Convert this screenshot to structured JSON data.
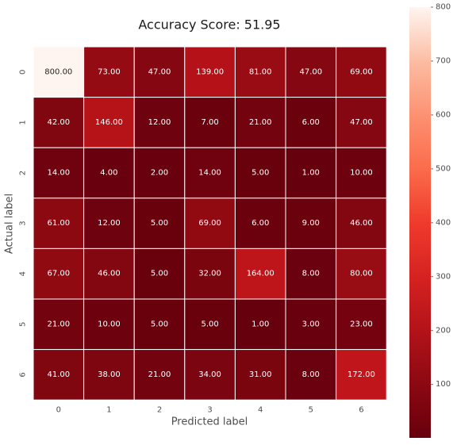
{
  "chart_data": {
    "type": "heatmap",
    "title": "Accuracy Score: 51.95",
    "xlabel": "Predicted label",
    "ylabel": "Actual label",
    "x_categories": [
      "0",
      "1",
      "2",
      "3",
      "4",
      "5",
      "6"
    ],
    "y_categories": [
      "0",
      "1",
      "2",
      "3",
      "4",
      "5",
      "6"
    ],
    "values": [
      [
        800,
        73,
        47,
        139,
        81,
        47,
        69
      ],
      [
        42,
        146,
        12,
        7,
        21,
        6,
        47
      ],
      [
        14,
        4,
        2,
        14,
        5,
        1,
        10
      ],
      [
        61,
        12,
        5,
        69,
        6,
        9,
        46
      ],
      [
        67,
        46,
        5,
        32,
        164,
        8,
        80
      ],
      [
        21,
        10,
        5,
        5,
        1,
        3,
        23
      ],
      [
        41,
        38,
        21,
        34,
        31,
        8,
        172
      ]
    ],
    "value_labels": [
      [
        "800.00",
        "73.00",
        "47.00",
        "139.00",
        "81.00",
        "47.00",
        "69.00"
      ],
      [
        "42.00",
        "146.00",
        "12.00",
        "7.00",
        "21.00",
        "6.00",
        "47.00"
      ],
      [
        "14.00",
        "4.00",
        "2.00",
        "14.00",
        "5.00",
        "1.00",
        "10.00"
      ],
      [
        "61.00",
        "12.00",
        "5.00",
        "69.00",
        "6.00",
        "9.00",
        "46.00"
      ],
      [
        "67.00",
        "46.00",
        "5.00",
        "32.00",
        "164.00",
        "8.00",
        "80.00"
      ],
      [
        "21.00",
        "10.00",
        "5.00",
        "5.00",
        "1.00",
        "3.00",
        "23.00"
      ],
      [
        "41.00",
        "38.00",
        "21.00",
        "34.00",
        "31.00",
        "8.00",
        "172.00"
      ]
    ],
    "colormap": "Reds_r",
    "colorbar": {
      "min": 1,
      "max": 800,
      "ticks": [
        "100",
        "200",
        "300",
        "400",
        "500",
        "600",
        "700",
        "800"
      ],
      "tick_values": [
        100,
        200,
        300,
        400,
        500,
        600,
        700,
        800
      ]
    }
  }
}
